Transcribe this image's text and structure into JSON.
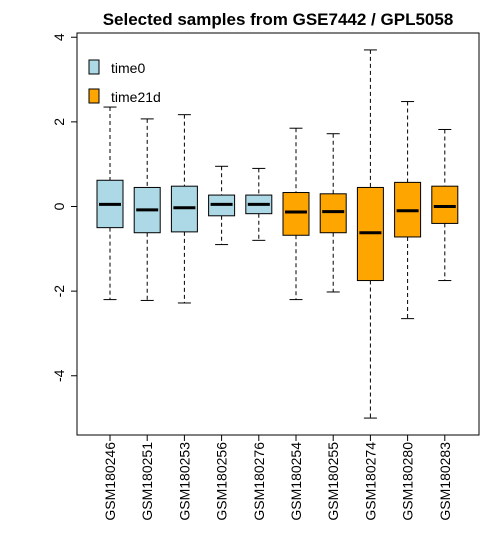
{
  "chart_data": {
    "type": "boxplot",
    "title": "Selected samples from GSE7442 / GPL5058",
    "xlabel": "",
    "ylabel": "",
    "ylim": [
      -5.4,
      4.1
    ],
    "yticks": [
      -4,
      -2,
      0,
      2,
      4
    ],
    "grid": false,
    "legend": {
      "placement": "top-left",
      "entries": [
        {
          "label": "time0",
          "color": "#ADD8E6"
        },
        {
          "label": "time21d",
          "color": "#FFA500"
        }
      ]
    },
    "colors": {
      "time0": "#ADD8E6",
      "time21d": "#FFA500"
    },
    "categories": [
      "GSM180246",
      "GSM180251",
      "GSM180253",
      "GSM180256",
      "GSM180276",
      "GSM180254",
      "GSM180255",
      "GSM180274",
      "GSM180280",
      "GSM180283"
    ],
    "groups": [
      "time0",
      "time0",
      "time0",
      "time0",
      "time0",
      "time21d",
      "time21d",
      "time21d",
      "time21d",
      "time21d"
    ],
    "series": [
      {
        "sample": "GSM180246",
        "whisker_low": -2.2,
        "q1": -0.5,
        "median": 0.05,
        "q3": 0.62,
        "whisker_high": 2.35
      },
      {
        "sample": "GSM180251",
        "whisker_low": -2.22,
        "q1": -0.62,
        "median": -0.08,
        "q3": 0.45,
        "whisker_high": 2.07
      },
      {
        "sample": "GSM180253",
        "whisker_low": -2.28,
        "q1": -0.6,
        "median": -0.03,
        "q3": 0.48,
        "whisker_high": 2.17
      },
      {
        "sample": "GSM180256",
        "whisker_low": -0.9,
        "q1": -0.22,
        "median": 0.05,
        "q3": 0.27,
        "whisker_high": 0.95
      },
      {
        "sample": "GSM180276",
        "whisker_low": -0.8,
        "q1": -0.17,
        "median": 0.05,
        "q3": 0.27,
        "whisker_high": 0.9
      },
      {
        "sample": "GSM180254",
        "whisker_low": -2.2,
        "q1": -0.68,
        "median": -0.13,
        "q3": 0.33,
        "whisker_high": 1.85
      },
      {
        "sample": "GSM180255",
        "whisker_low": -2.02,
        "q1": -0.62,
        "median": -0.12,
        "q3": 0.3,
        "whisker_high": 1.72
      },
      {
        "sample": "GSM180274",
        "whisker_low": -5.0,
        "q1": -1.75,
        "median": -0.62,
        "q3": 0.45,
        "whisker_high": 3.7
      },
      {
        "sample": "GSM180280",
        "whisker_low": -2.65,
        "q1": -0.72,
        "median": -0.1,
        "q3": 0.57,
        "whisker_high": 2.48
      },
      {
        "sample": "GSM180283",
        "whisker_low": -1.75,
        "q1": -0.4,
        "median": 0.0,
        "q3": 0.48,
        "whisker_high": 1.82
      }
    ]
  }
}
